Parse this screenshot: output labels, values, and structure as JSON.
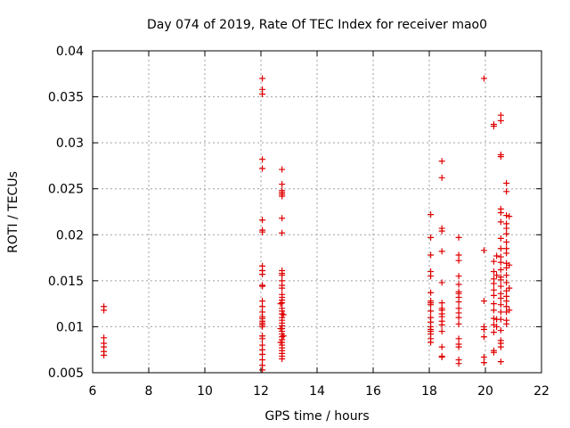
{
  "chart_data": {
    "type": "scatter",
    "title": "Day 074 of 2019, Rate Of TEC Index for receiver mao0",
    "xlabel": "GPS time / hours",
    "ylabel": "ROTI / TECUs",
    "xlim": [
      6,
      22
    ],
    "ylim": [
      0.005,
      0.04
    ],
    "x_ticks": [
      6,
      8,
      10,
      12,
      14,
      16,
      18,
      20,
      22
    ],
    "x_tick_labels": [
      "6",
      "8",
      "10",
      "12",
      "14",
      "16",
      "18",
      "20",
      "22"
    ],
    "y_ticks": [
      0.005,
      0.01,
      0.015,
      0.02,
      0.025,
      0.03,
      0.035,
      0.04
    ],
    "y_tick_labels": [
      "0.005",
      "0.01",
      "0.015",
      "0.02",
      "0.025",
      "0.03",
      "0.035",
      "0.04"
    ],
    "grid": true,
    "marker": "+",
    "marker_color": "#e00000",
    "series": [
      {
        "name": "ROTI",
        "points": [
          [
            6.4,
            0.0122
          ],
          [
            6.4,
            0.0118
          ],
          [
            6.4,
            0.0088
          ],
          [
            6.4,
            0.0082
          ],
          [
            6.4,
            0.0078
          ],
          [
            6.4,
            0.0073
          ],
          [
            6.4,
            0.0069
          ],
          [
            12.05,
            0.037
          ],
          [
            12.05,
            0.0358
          ],
          [
            12.05,
            0.0353
          ],
          [
            12.05,
            0.0282
          ],
          [
            12.05,
            0.0272
          ],
          [
            12.05,
            0.0216
          ],
          [
            12.05,
            0.0205
          ],
          [
            12.05,
            0.0203
          ],
          [
            12.05,
            0.0166
          ],
          [
            12.05,
            0.0161
          ],
          [
            12.05,
            0.0157
          ],
          [
            12.05,
            0.0145
          ],
          [
            12.05,
            0.0144
          ],
          [
            12.05,
            0.0128
          ],
          [
            12.05,
            0.0122
          ],
          [
            12.05,
            0.0116
          ],
          [
            12.05,
            0.0111
          ],
          [
            12.05,
            0.0109
          ],
          [
            12.05,
            0.0106
          ],
          [
            12.05,
            0.0104
          ],
          [
            12.05,
            0.0102
          ],
          [
            12.05,
            0.01
          ],
          [
            12.05,
            0.009
          ],
          [
            12.05,
            0.0087
          ],
          [
            12.05,
            0.008
          ],
          [
            12.05,
            0.0075
          ],
          [
            12.05,
            0.007
          ],
          [
            12.05,
            0.0064
          ],
          [
            12.05,
            0.0058
          ],
          [
            12.05,
            0.0053
          ],
          [
            12.75,
            0.0271
          ],
          [
            12.75,
            0.0255
          ],
          [
            12.75,
            0.0248
          ],
          [
            12.75,
            0.0246
          ],
          [
            12.75,
            0.0244
          ],
          [
            12.75,
            0.0242
          ],
          [
            12.75,
            0.0218
          ],
          [
            12.75,
            0.0202
          ],
          [
            12.75,
            0.0161
          ],
          [
            12.75,
            0.0158
          ],
          [
            12.75,
            0.0156
          ],
          [
            12.75,
            0.015
          ],
          [
            12.75,
            0.0145
          ],
          [
            12.75,
            0.0142
          ],
          [
            12.75,
            0.0135
          ],
          [
            12.75,
            0.0132
          ],
          [
            12.75,
            0.0129
          ],
          [
            12.75,
            0.0126
          ],
          [
            12.75,
            0.012
          ],
          [
            12.75,
            0.0117
          ],
          [
            12.75,
            0.0114
          ],
          [
            12.75,
            0.011
          ],
          [
            12.75,
            0.0107
          ],
          [
            12.75,
            0.0104
          ],
          [
            12.75,
            0.0101
          ],
          [
            12.75,
            0.0098
          ],
          [
            12.75,
            0.0095
          ],
          [
            12.75,
            0.0092
          ],
          [
            12.75,
            0.0089
          ],
          [
            12.75,
            0.0086
          ],
          [
            12.75,
            0.0083
          ],
          [
            12.75,
            0.008
          ],
          [
            12.75,
            0.0077
          ],
          [
            12.75,
            0.0074
          ],
          [
            12.75,
            0.0071
          ],
          [
            12.75,
            0.0068
          ],
          [
            12.75,
            0.0065
          ],
          [
            12.7,
            0.0125
          ],
          [
            12.7,
            0.0098
          ],
          [
            12.7,
            0.0083
          ],
          [
            12.8,
            0.0113
          ],
          [
            12.8,
            0.009
          ],
          [
            18.05,
            0.0222
          ],
          [
            18.05,
            0.0197
          ],
          [
            18.05,
            0.0178
          ],
          [
            18.05,
            0.016
          ],
          [
            18.05,
            0.0155
          ],
          [
            18.05,
            0.0137
          ],
          [
            18.05,
            0.0128
          ],
          [
            18.05,
            0.0126
          ],
          [
            18.05,
            0.0124
          ],
          [
            18.05,
            0.0117
          ],
          [
            18.05,
            0.011
          ],
          [
            18.05,
            0.0105
          ],
          [
            18.05,
            0.01
          ],
          [
            18.05,
            0.0097
          ],
          [
            18.05,
            0.0095
          ],
          [
            18.05,
            0.0092
          ],
          [
            18.05,
            0.0087
          ],
          [
            18.05,
            0.0083
          ],
          [
            18.45,
            0.028
          ],
          [
            18.45,
            0.0262
          ],
          [
            18.45,
            0.0207
          ],
          [
            18.45,
            0.0204
          ],
          [
            18.45,
            0.0182
          ],
          [
            18.45,
            0.0148
          ],
          [
            18.45,
            0.0126
          ],
          [
            18.45,
            0.012
          ],
          [
            18.45,
            0.0118
          ],
          [
            18.45,
            0.0114
          ],
          [
            18.45,
            0.0111
          ],
          [
            18.45,
            0.0106
          ],
          [
            18.45,
            0.0102
          ],
          [
            18.45,
            0.0095
          ],
          [
            18.45,
            0.0078
          ],
          [
            18.45,
            0.0068
          ],
          [
            18.45,
            0.0067
          ],
          [
            19.05,
            0.0197
          ],
          [
            19.05,
            0.0178
          ],
          [
            19.05,
            0.0172
          ],
          [
            19.05,
            0.0155
          ],
          [
            19.05,
            0.0146
          ],
          [
            19.05,
            0.0138
          ],
          [
            19.05,
            0.0136
          ],
          [
            19.05,
            0.0132
          ],
          [
            19.05,
            0.0127
          ],
          [
            19.05,
            0.012
          ],
          [
            19.05,
            0.0115
          ],
          [
            19.05,
            0.011
          ],
          [
            19.05,
            0.0103
          ],
          [
            19.05,
            0.0087
          ],
          [
            19.05,
            0.0081
          ],
          [
            19.05,
            0.0078
          ],
          [
            19.05,
            0.0064
          ],
          [
            19.05,
            0.006
          ],
          [
            19.95,
            0.037
          ],
          [
            19.95,
            0.0183
          ],
          [
            19.95,
            0.0128
          ],
          [
            19.95,
            0.01
          ],
          [
            19.95,
            0.0097
          ],
          [
            19.95,
            0.0089
          ],
          [
            19.95,
            0.0067
          ],
          [
            19.95,
            0.0061
          ],
          [
            20.3,
            0.032
          ],
          [
            20.3,
            0.0318
          ],
          [
            20.3,
            0.0171
          ],
          [
            20.3,
            0.016
          ],
          [
            20.3,
            0.0152
          ],
          [
            20.3,
            0.0147
          ],
          [
            20.3,
            0.014
          ],
          [
            20.3,
            0.0134
          ],
          [
            20.3,
            0.0125
          ],
          [
            20.3,
            0.0118
          ],
          [
            20.3,
            0.0109
          ],
          [
            20.3,
            0.0102
          ],
          [
            20.3,
            0.0094
          ],
          [
            20.3,
            0.0074
          ],
          [
            20.3,
            0.0072
          ],
          [
            20.4,
            0.0177
          ],
          [
            20.4,
            0.0156
          ],
          [
            20.4,
            0.0108
          ],
          [
            20.4,
            0.01
          ],
          [
            20.55,
            0.033
          ],
          [
            20.55,
            0.0324
          ],
          [
            20.55,
            0.0287
          ],
          [
            20.55,
            0.0285
          ],
          [
            20.55,
            0.0228
          ],
          [
            20.55,
            0.0224
          ],
          [
            20.55,
            0.0214
          ],
          [
            20.55,
            0.0196
          ],
          [
            20.55,
            0.0185
          ],
          [
            20.55,
            0.0176
          ],
          [
            20.55,
            0.017
          ],
          [
            20.55,
            0.0162
          ],
          [
            20.55,
            0.0154
          ],
          [
            20.55,
            0.0151
          ],
          [
            20.55,
            0.0144
          ],
          [
            20.55,
            0.0136
          ],
          [
            20.55,
            0.0131
          ],
          [
            20.55,
            0.0124
          ],
          [
            20.55,
            0.0116
          ],
          [
            20.55,
            0.0108
          ],
          [
            20.55,
            0.0096
          ],
          [
            20.55,
            0.0085
          ],
          [
            20.55,
            0.0082
          ],
          [
            20.55,
            0.0078
          ],
          [
            20.55,
            0.0062
          ],
          [
            20.75,
            0.0256
          ],
          [
            20.75,
            0.0247
          ],
          [
            20.75,
            0.0221
          ],
          [
            20.75,
            0.0212
          ],
          [
            20.75,
            0.0207
          ],
          [
            20.75,
            0.0201
          ],
          [
            20.75,
            0.0192
          ],
          [
            20.75,
            0.0185
          ],
          [
            20.75,
            0.018
          ],
          [
            20.75,
            0.0169
          ],
          [
            20.75,
            0.0164
          ],
          [
            20.75,
            0.0156
          ],
          [
            20.75,
            0.0148
          ],
          [
            20.75,
            0.0139
          ],
          [
            20.75,
            0.0133
          ],
          [
            20.75,
            0.0128
          ],
          [
            20.75,
            0.0122
          ],
          [
            20.75,
            0.0116
          ],
          [
            20.75,
            0.0107
          ],
          [
            20.75,
            0.0103
          ],
          [
            20.85,
            0.022
          ],
          [
            20.85,
            0.0167
          ],
          [
            20.85,
            0.0142
          ],
          [
            20.85,
            0.0118
          ]
        ]
      }
    ]
  }
}
